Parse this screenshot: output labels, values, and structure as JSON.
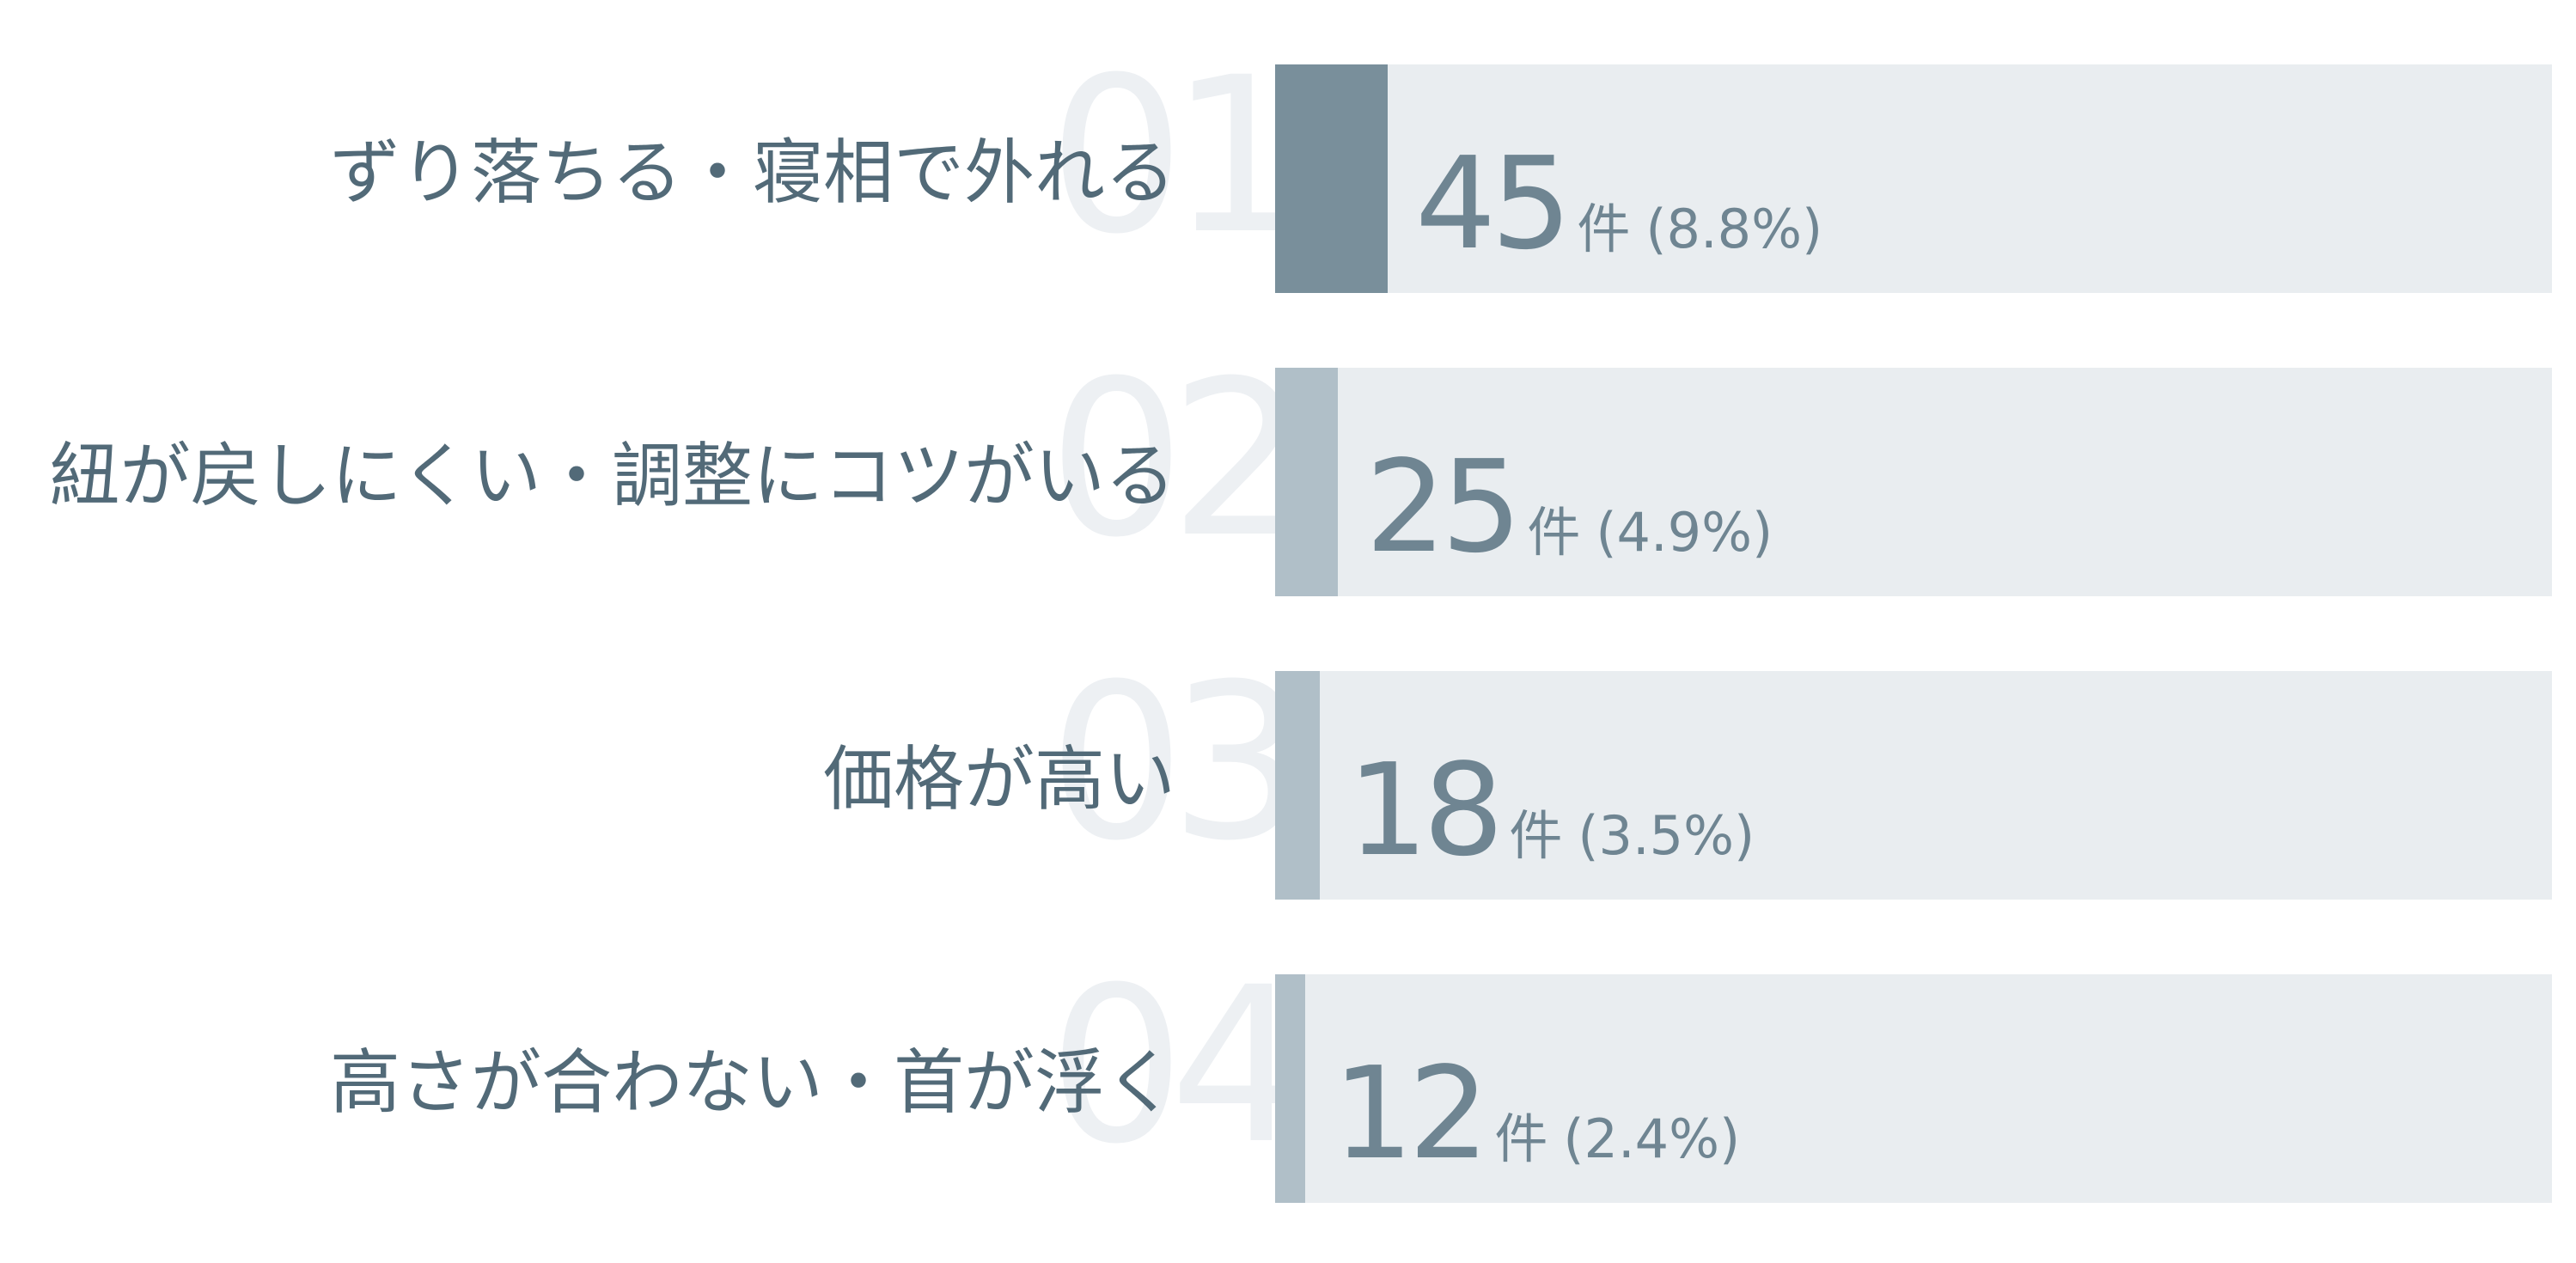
{
  "chart_data": {
    "type": "bar",
    "orientation": "horizontal",
    "max_value": 512,
    "categories": [
      "ずり落ちる・寝相で外れる",
      "紐が戻しにくい・調整にコツがいる",
      "価格が高い",
      "高さが合わない・首が浮く"
    ],
    "ranks": [
      "01",
      "02",
      "03",
      "04"
    ],
    "values": [
      45,
      25,
      18,
      12
    ],
    "unit": "件",
    "percent_labels": [
      "(8.8%)",
      "(4.9%)",
      "(3.5%)",
      "(2.4%)"
    ],
    "colors": {
      "highlight_bar": "#798f9b",
      "bar": "#b0bfc8",
      "track": "#e9edf0",
      "label_text": "#526a78",
      "value_text": "#6f8592",
      "rank_text": "#edf0f3"
    }
  }
}
